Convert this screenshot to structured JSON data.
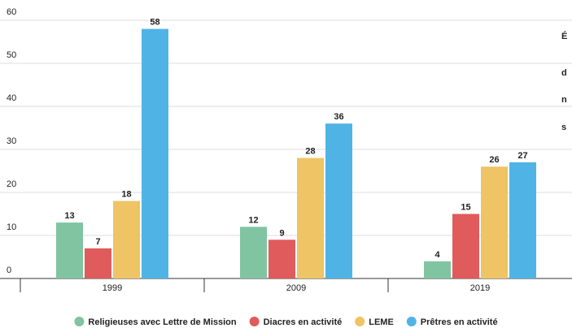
{
  "chart_data": {
    "type": "bar",
    "annotations": [
      "É",
      "d",
      "n",
      "s"
    ],
    "categories": [
      "1999",
      "2009",
      "2019"
    ],
    "series": [
      {
        "name": "Religieuses avec Lettre de Mission",
        "color": "#80c4a1",
        "values": [
          13,
          12,
          4
        ]
      },
      {
        "name": "Diacres en activité",
        "color": "#e05b5c",
        "values": [
          7,
          9,
          15
        ]
      },
      {
        "name": "LEME",
        "color": "#eec464",
        "values": [
          18,
          28,
          26
        ]
      },
      {
        "name": "Prêtres en activité",
        "color": "#4fb4e5",
        "values": [
          58,
          36,
          27
        ]
      }
    ],
    "ylim": [
      0,
      60
    ],
    "yticks": [
      0,
      10,
      20,
      30,
      40,
      50,
      60
    ],
    "grid": true,
    "legend": "bottom"
  }
}
